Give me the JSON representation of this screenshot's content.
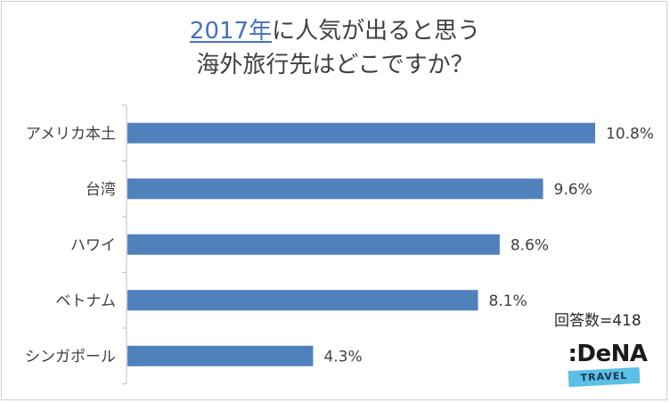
{
  "title": {
    "line1_accent": "2017年",
    "line1_rest": "に人気が出ると思う",
    "line2": "海外旅行先はどこですか？"
  },
  "respondents": "回答数=418",
  "logo": {
    "wordmark": ":DeNA",
    "sub": "TRAVEL"
  },
  "chart_data": {
    "type": "bar",
    "orientation": "horizontal",
    "categories": [
      "アメリカ本土",
      "台湾",
      "ハワイ",
      "ベトナム",
      "シンガポール"
    ],
    "values": [
      10.8,
      9.6,
      8.6,
      8.1,
      4.3
    ],
    "value_labels": [
      "10.8%",
      "9.6%",
      "8.6%",
      "8.1%",
      "4.3%"
    ],
    "xlim": [
      0,
      10.8
    ],
    "grid": false,
    "colors": {
      "bar": "#4f81bd",
      "axis": "#bfbfbf",
      "text": "#404040"
    }
  }
}
